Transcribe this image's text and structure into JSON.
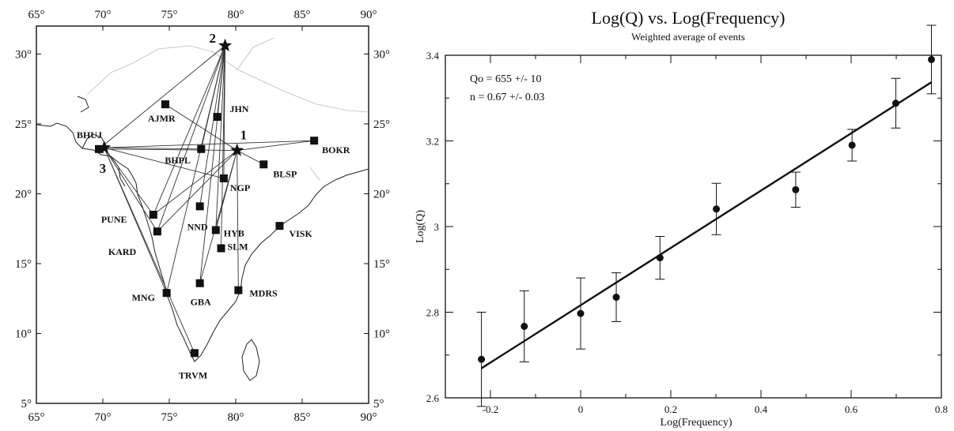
{
  "chart_data": [
    {
      "type": "map",
      "xlim": [
        65,
        90
      ],
      "ylim": [
        5,
        32
      ],
      "x_ticks": [
        65,
        70,
        75,
        80,
        85,
        90
      ],
      "y_ticks": [
        5,
        10,
        15,
        20,
        25,
        30
      ],
      "x_tick_labels": [
        "65°",
        "70°",
        "75°",
        "80°",
        "85°",
        "90°"
      ],
      "y_tick_labels": [
        "5°",
        "10°",
        "15°",
        "20°",
        "25°",
        "30°"
      ],
      "events": [
        {
          "id": "1",
          "lon": 80.1,
          "lat": 23.1
        },
        {
          "id": "2",
          "lon": 79.2,
          "lat": 30.6
        },
        {
          "id": "3",
          "lon": 70.1,
          "lat": 23.3
        }
      ],
      "stations": [
        {
          "name": "BHUJ",
          "lon": 69.7,
          "lat": 23.2
        },
        {
          "name": "AJMR",
          "lon": 74.7,
          "lat": 26.4
        },
        {
          "name": "JHN",
          "lon": 78.6,
          "lat": 25.5
        },
        {
          "name": "BOKR",
          "lon": 85.9,
          "lat": 23.8
        },
        {
          "name": "BHPL",
          "lon": 77.4,
          "lat": 23.2
        },
        {
          "name": "BLSP",
          "lon": 82.1,
          "lat": 22.1
        },
        {
          "name": "NGP",
          "lon": 79.1,
          "lat": 21.1
        },
        {
          "name": "NND",
          "lon": 77.3,
          "lat": 19.1
        },
        {
          "name": "PUNE",
          "lon": 73.8,
          "lat": 18.5
        },
        {
          "name": "HYB",
          "lon": 78.5,
          "lat": 17.4
        },
        {
          "name": "KARD",
          "lon": 74.1,
          "lat": 17.3
        },
        {
          "name": "VISK",
          "lon": 83.3,
          "lat": 17.7
        },
        {
          "name": "SLM",
          "lon": 78.9,
          "lat": 16.1
        },
        {
          "name": "GBA",
          "lon": 77.3,
          "lat": 13.6
        },
        {
          "name": "MNG",
          "lon": 74.8,
          "lat": 12.9
        },
        {
          "name": "MDRS",
          "lon": 80.2,
          "lat": 13.1
        },
        {
          "name": "TRVM",
          "lon": 76.9,
          "lat": 8.6
        }
      ],
      "paths": [
        [
          "1",
          "BHUJ"
        ],
        [
          "1",
          "BOKR"
        ],
        [
          "1",
          "AJMR"
        ],
        [
          "1",
          "BLSP"
        ],
        [
          "1",
          "PUNE"
        ],
        [
          "1",
          "KARD"
        ],
        [
          "1",
          "GBA"
        ],
        [
          "1",
          "MDRS"
        ],
        [
          "1",
          "HYB"
        ],
        [
          "2",
          "BHUJ"
        ],
        [
          "2",
          "JHN"
        ],
        [
          "2",
          "BHPL"
        ],
        [
          "2",
          "NGP"
        ],
        [
          "2",
          "NND"
        ],
        [
          "2",
          "PUNE"
        ],
        [
          "2",
          "KARD"
        ],
        [
          "2",
          "MNG"
        ],
        [
          "2",
          "GBA"
        ],
        [
          "2",
          "SLM"
        ],
        [
          "2",
          "HYB"
        ],
        [
          "3",
          "BOKR"
        ],
        [
          "3",
          "BHPL"
        ],
        [
          "3",
          "NGP"
        ],
        [
          "3",
          "PUNE"
        ],
        [
          "3",
          "KARD"
        ],
        [
          "3",
          "MNG"
        ],
        [
          "3",
          "TRVM"
        ]
      ]
    },
    {
      "type": "scatter",
      "title": "Log(Q) vs. Log(Frequency)",
      "subtitle": "Weighted average of events",
      "xlabel": "Log(Frequency)",
      "ylabel": "Log(Q)",
      "xlim": [
        -0.3,
        0.8
      ],
      "ylim": [
        2.6,
        3.4
      ],
      "x_ticks": [
        -0.2,
        0,
        0.2,
        0.4,
        0.6,
        0.8
      ],
      "x_tick_labels": [
        "-0.2",
        "0",
        "0.2",
        "0.4",
        "0.6",
        "0.8"
      ],
      "y_ticks": [
        2.6,
        2.8,
        3.0,
        3.2,
        3.4
      ],
      "y_tick_labels": [
        "2.6",
        "2.8",
        "3",
        "3.2",
        "3.4"
      ],
      "annotations": [
        "Qo = 655 +/- 10",
        "n = 0.67 +/- 0.03"
      ],
      "points": [
        {
          "x": -0.22,
          "y": 2.69,
          "err": 0.11
        },
        {
          "x": -0.125,
          "y": 2.767,
          "err": 0.083
        },
        {
          "x": 0.0,
          "y": 2.797,
          "err": 0.083
        },
        {
          "x": 0.079,
          "y": 2.835,
          "err": 0.057
        },
        {
          "x": 0.176,
          "y": 2.927,
          "err": 0.05
        },
        {
          "x": 0.301,
          "y": 3.041,
          "err": 0.06
        },
        {
          "x": 0.477,
          "y": 3.086,
          "err": 0.041
        },
        {
          "x": 0.602,
          "y": 3.19,
          "err": 0.037
        },
        {
          "x": 0.699,
          "y": 3.288,
          "err": 0.058
        },
        {
          "x": 0.778,
          "y": 3.39,
          "err": 0.08
        }
      ],
      "fit": {
        "x": [
          -0.22,
          0.778
        ],
        "y": [
          2.669,
          3.337
        ]
      }
    }
  ]
}
